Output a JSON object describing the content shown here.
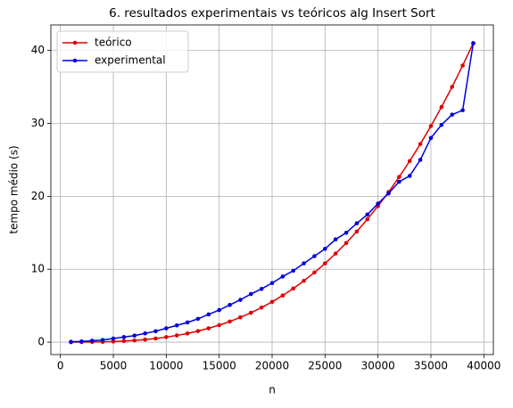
{
  "chart_data": {
    "type": "line",
    "title": "6. resultados experimentais vs teóricos alg Insert Sort",
    "x_label": "n",
    "y_label": "tempo médio (s)",
    "x": [
      1000,
      2000,
      3000,
      4000,
      5000,
      6000,
      7000,
      8000,
      9000,
      10000,
      11000,
      12000,
      13000,
      14000,
      15000,
      16000,
      17000,
      18000,
      19000,
      20000,
      21000,
      22000,
      23000,
      24000,
      25000,
      26000,
      27000,
      28000,
      29000,
      30000,
      31000,
      32000,
      33000,
      34000,
      35000,
      36000,
      37000,
      38000,
      39000
    ],
    "series": [
      {
        "name": "teórico",
        "color": "#e00000",
        "values": [
          0.0,
          0.01,
          0.02,
          0.04,
          0.09,
          0.15,
          0.24,
          0.35,
          0.5,
          0.69,
          0.92,
          1.19,
          1.52,
          1.9,
          2.33,
          2.83,
          3.4,
          4.03,
          4.74,
          5.53,
          6.4,
          7.36,
          8.41,
          9.55,
          10.8,
          12.15,
          13.6,
          15.17,
          16.86,
          18.66,
          20.59,
          22.65,
          24.84,
          27.17,
          29.63,
          32.25,
          35.01,
          37.93,
          41.0
        ]
      },
      {
        "name": "experimental",
        "color": "#0000e0",
        "values": [
          0.05,
          0.1,
          0.2,
          0.3,
          0.5,
          0.7,
          0.9,
          1.2,
          1.5,
          1.9,
          2.3,
          2.7,
          3.2,
          3.8,
          4.4,
          5.1,
          5.8,
          6.6,
          7.3,
          8.1,
          9.0,
          9.8,
          10.8,
          11.8,
          12.8,
          14.1,
          15.0,
          16.3,
          17.5,
          19.0,
          20.4,
          22.0,
          22.8,
          25.0,
          28.0,
          29.8,
          31.2,
          31.8,
          41.0
        ]
      }
    ],
    "xlim": [
      -900,
      40900
    ],
    "ylim": [
      -1.7,
      43.5
    ],
    "xticks": [
      0,
      5000,
      10000,
      15000,
      20000,
      25000,
      30000,
      35000,
      40000
    ],
    "yticks": [
      0,
      10,
      20,
      30,
      40
    ],
    "grid": true,
    "legend": "upper left"
  }
}
